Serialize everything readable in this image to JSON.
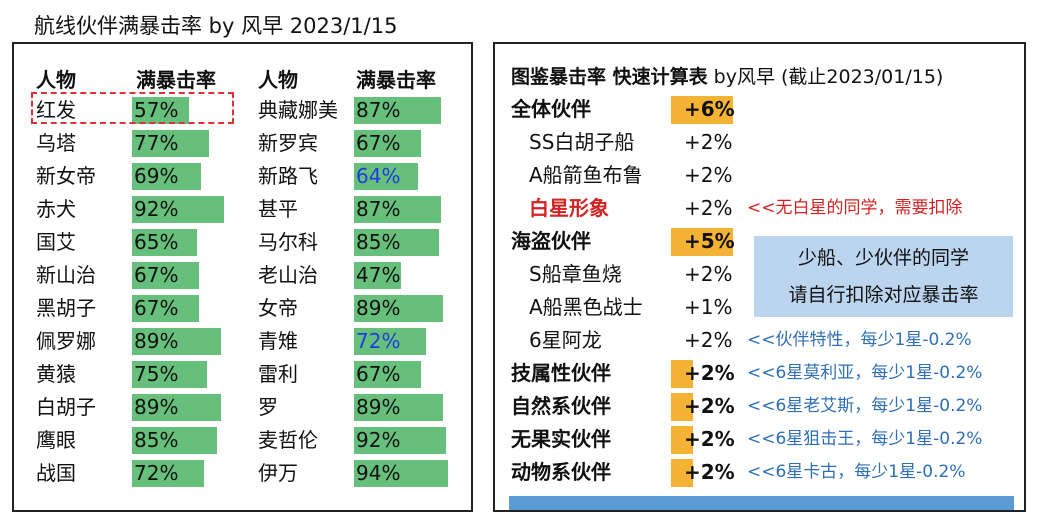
{
  "title": "航线伙伴满暴击率 by 风早 2023/1/15",
  "left": {
    "headers": [
      "人物",
      "满暴击率",
      "人物",
      "满暴击率"
    ],
    "col1": [
      {
        "name": "红发",
        "rate": "57%",
        "value": 57
      },
      {
        "name": "乌塔",
        "rate": "77%",
        "value": 77
      },
      {
        "name": "新女帝",
        "rate": "69%",
        "value": 69
      },
      {
        "name": "赤犬",
        "rate": "92%",
        "value": 92
      },
      {
        "name": "国艾",
        "rate": "65%",
        "value": 65
      },
      {
        "name": "新山治",
        "rate": "67%",
        "value": 67
      },
      {
        "name": "黑胡子",
        "rate": "67%",
        "value": 67
      },
      {
        "name": "佩罗娜",
        "rate": "89%",
        "value": 89
      },
      {
        "name": "黄猿",
        "rate": "75%",
        "value": 75
      },
      {
        "name": "白胡子",
        "rate": "89%",
        "value": 89
      },
      {
        "name": "鹰眼",
        "rate": "85%",
        "value": 85
      },
      {
        "name": "战国",
        "rate": "72%",
        "value": 72
      }
    ],
    "col2": [
      {
        "name": "典藏娜美",
        "rate": "87%",
        "value": 87
      },
      {
        "name": "新罗宾",
        "rate": "67%",
        "value": 67
      },
      {
        "name": "新路飞",
        "rate": "64%",
        "value": 64,
        "blue": true
      },
      {
        "name": "甚平",
        "rate": "87%",
        "value": 87
      },
      {
        "name": "马尔科",
        "rate": "85%",
        "value": 85
      },
      {
        "name": "老山治",
        "rate": "47%",
        "value": 47
      },
      {
        "name": "女帝",
        "rate": "89%",
        "value": 89
      },
      {
        "name": "青雉",
        "rate": "72%",
        "value": 72,
        "blue": true
      },
      {
        "name": "雷利",
        "rate": "67%",
        "value": 67
      },
      {
        "name": "罗",
        "rate": "89%",
        "value": 89
      },
      {
        "name": "麦哲伦",
        "rate": "92%",
        "value": 92
      },
      {
        "name": "伊万",
        "rate": "94%",
        "value": 94
      }
    ]
  },
  "right": {
    "title_bold": "图鉴暴击率 快速计算表",
    "title_rest": " by风早 (截止2023/01/15)",
    "rows": [
      {
        "label": "全体伙伴",
        "value": "+6%",
        "style": "group",
        "box": 1.0,
        "note": "",
        "note_style": ""
      },
      {
        "label": "SS白胡子船",
        "value": "+2%",
        "style": "sub",
        "note": "",
        "note_style": ""
      },
      {
        "label": "A船箭鱼布鲁",
        "value": "+2%",
        "style": "sub",
        "note": "",
        "note_style": ""
      },
      {
        "label": "白星形象",
        "value": "+2%",
        "style": "red",
        "note": "<<无白星的同学，需要扣除",
        "note_style": "red"
      },
      {
        "label": "海盗伙伴",
        "value": "+5%",
        "style": "group",
        "box": 1.0,
        "note": "",
        "note_style": ""
      },
      {
        "label": "S船章鱼烧",
        "value": "+2%",
        "style": "sub",
        "note": "",
        "note_style": ""
      },
      {
        "label": "A船黑色战士",
        "value": "+1%",
        "style": "sub",
        "note": "",
        "note_style": ""
      },
      {
        "label": "6星阿龙",
        "value": "+2%",
        "style": "sub",
        "note": "<<伙伴特性，每少1星-0.2%",
        "note_style": "blue"
      },
      {
        "label": "技属性伙伴",
        "value": "+2%",
        "style": "group",
        "box": 0.35,
        "note": "<<6星莫利亚，每少1星-0.2%",
        "note_style": "blue"
      },
      {
        "label": "自然系伙伴",
        "value": "+2%",
        "style": "group",
        "box": 0.35,
        "note": "<<6星老艾斯，每少1星-0.2%",
        "note_style": "blue"
      },
      {
        "label": "无果实伙伴",
        "value": "+2%",
        "style": "group",
        "box": 0.35,
        "note": "<<6星狙击王，每少1星-0.2%",
        "note_style": "blue"
      },
      {
        "label": "动物系伙伴",
        "value": "+2%",
        "style": "group",
        "box": 0.35,
        "note": "<<6星卡古，每少1星-0.2%",
        "note_style": "blue"
      }
    ],
    "info_line1": "少船、少伙伴的同学",
    "info_line2": "请自行扣除对应暴击率"
  },
  "colors": {
    "bar": "#66bf7b",
    "orange": "#f5b335",
    "note_blue": "#2e6fb6",
    "red": "#d32222",
    "info_bg": "#bcd5ee"
  }
}
